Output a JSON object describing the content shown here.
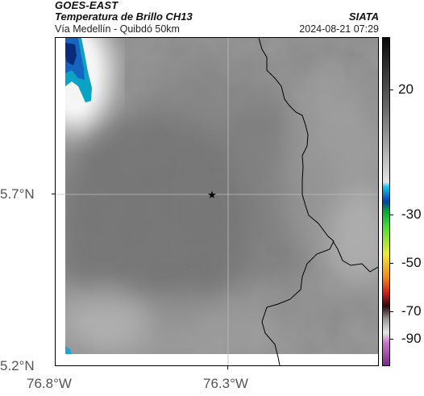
{
  "header": {
    "satellite": "GOES-EAST",
    "product": "Temperatura de Brillo CH13",
    "route": "Vía Medellín - Quibdó 50km",
    "org": "SIATA",
    "datetime": "2024-08-21 07:29"
  },
  "axes": {
    "y_labels": [
      "5.7°N",
      "5.2°N"
    ],
    "x_labels": [
      "76.8°W",
      "76.3°W"
    ]
  },
  "colorbar": {
    "ticks": [
      "20",
      "-30",
      "-50",
      "-70",
      "-90"
    ],
    "units_hint": "°C"
  },
  "map": {
    "marker_icon": "star-icon",
    "colors": {
      "cold_core": "#0a2a7a",
      "cold_edge": "#0aa3c6",
      "warm_gray": "#8a8a8a",
      "dark_gray": "#6e6e6e",
      "border": "#000000"
    }
  }
}
